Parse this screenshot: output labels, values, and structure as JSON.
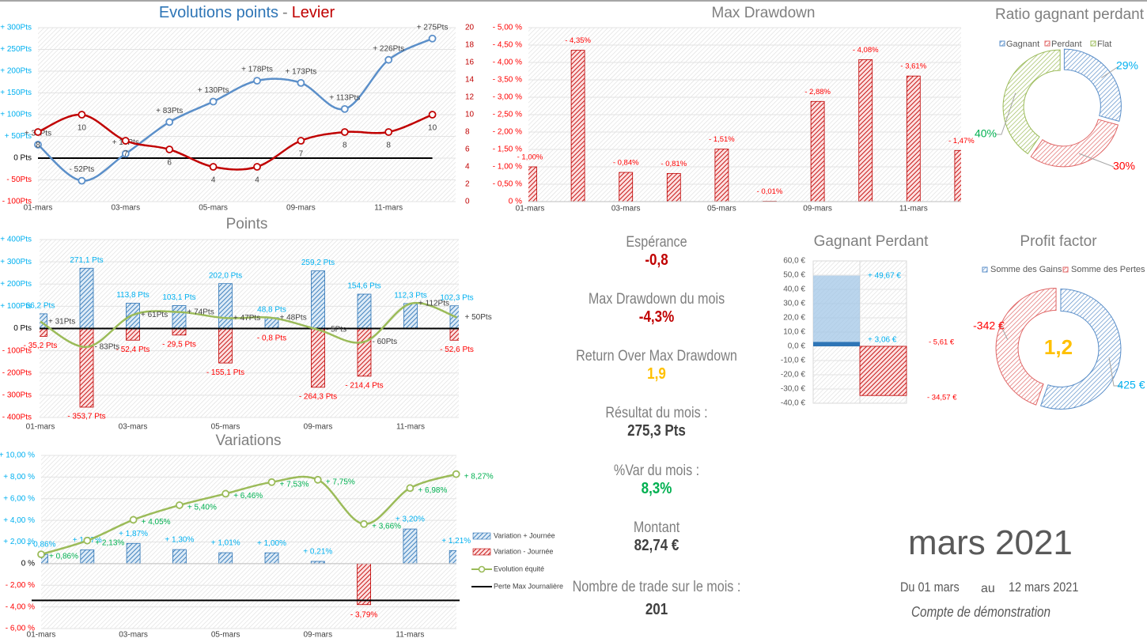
{
  "colors": {
    "blue_line": "#5b8fc9",
    "blue_bar": "#2e75b6",
    "red": "#c00000",
    "label_cyan": "#00b0f0",
    "label_red": "#ff0000",
    "label_green": "#00b050",
    "green_line": "#9bbb59",
    "gold": "#ffc000",
    "gray_text": "#7f7f7f"
  },
  "chart_data": [
    {
      "type": "line",
      "title": "Evolutions points",
      "title_separator": "-",
      "title_secondary": "Levier",
      "x_tick_labels": [
        "01-mars",
        "03-mars",
        "05-mars",
        "09-mars",
        "11-mars"
      ],
      "y_left_ticks": [
        "+ 300Pts",
        "+ 250Pts",
        "+ 200Pts",
        "+ 150Pts",
        "+ 100Pts",
        "+ 50Pts",
        "0 Pts",
        "- 50Pts",
        "- 100Pts"
      ],
      "y_right_ticks": [
        "20",
        "18",
        "16",
        "14",
        "12",
        "10",
        "8",
        "6",
        "4",
        "2",
        "0"
      ],
      "ylim_left": [
        -100,
        300
      ],
      "ylim_right": [
        0,
        20
      ],
      "grid": true,
      "series": [
        {
          "axis": "left",
          "color": "#5b8fc9",
          "values": [
            31,
            -52,
            10,
            83,
            130,
            178,
            173,
            113,
            226,
            275
          ],
          "labels": [
            "+ 31Pts",
            "- 52Pts",
            "+ 10Pts",
            "+ 83Pts",
            "+ 130Pts",
            "+ 178Pts",
            "+ 173Pts",
            "+ 113Pts",
            "+ 226Pts",
            "+ 275Pts"
          ]
        },
        {
          "axis": "right",
          "color": "#c00000",
          "values": [
            8,
            10,
            7,
            6,
            4,
            4,
            7,
            8,
            8,
            10
          ],
          "labels": [
            "8",
            "10",
            "7",
            "6",
            "4",
            "4",
            "7",
            "8",
            "8",
            "10"
          ]
        }
      ]
    },
    {
      "type": "bar",
      "title": "Points",
      "x_tick_labels": [
        "01-mars",
        "03-mars",
        "05-mars",
        "09-mars",
        "11-mars"
      ],
      "y_ticks": [
        "+ 400Pts",
        "+ 300Pts",
        "+ 200Pts",
        "+ 100Pts",
        "0 Pts",
        "- 100Pts",
        "- 200Pts",
        "- 300Pts",
        "- 400Pts"
      ],
      "ylim": [
        -400,
        400
      ],
      "grid": true,
      "series": [
        {
          "kind": "bar",
          "color": "#2e75b6",
          "values": [
            66.2,
            271.1,
            113.8,
            103.1,
            202.0,
            48.8,
            259.2,
            154.6,
            112.3,
            102.3
          ],
          "labels": [
            "66,2 Pts",
            "271,1 Pts",
            "113,8 Pts",
            "103,1 Pts",
            "202,0 Pts",
            "48,8 Pts",
            "259,2 Pts",
            "154,6 Pts",
            "112,3 Pts",
            "102,3 Pts"
          ]
        },
        {
          "kind": "bar",
          "color": "#c00000",
          "values": [
            -35.2,
            -353.7,
            -52.4,
            -29.5,
            -155.1,
            -0.8,
            -264.3,
            -214.4,
            null,
            -52.6
          ],
          "labels": [
            "- 35,2 Pts",
            "- 353,7 Pts",
            "- 52,4 Pts",
            "- 29,5 Pts",
            "- 155,1 Pts",
            "- 0,8 Pts",
            "- 264,3 Pts",
            "- 214,4 Pts",
            null,
            "- 52,6 Pts"
          ]
        },
        {
          "kind": "line",
          "color": "#9bbb59",
          "values": [
            31,
            -83,
            61,
            74,
            47,
            48,
            -5,
            -60,
            112,
            50
          ],
          "labels": [
            "+ 31Pts",
            "- 83Pts",
            "+ 61Pts",
            "+ 74Pts",
            "+ 47Pts",
            "+ 48Pts",
            "- 5Pts",
            "- 60Pts",
            "+ 112Pts",
            "+ 50Pts"
          ]
        }
      ]
    },
    {
      "type": "bar",
      "title": "Variations",
      "x_tick_labels": [
        "01-mars",
        "03-mars",
        "05-mars",
        "09-mars",
        "11-mars"
      ],
      "y_ticks": [
        "+ 10,00 %",
        "+ 8,00 %",
        "+ 6,00 %",
        "+ 4,00 %",
        "+ 2,00 %",
        "0 %",
        "- 2,00 %",
        "- 4,00 %",
        "- 6,00 %"
      ],
      "ylim": [
        -6,
        10
      ],
      "grid": true,
      "legend": "right",
      "series": [
        {
          "name": "Variation + Journée",
          "kind": "bar",
          "color": "#2e75b6",
          "values": [
            0.86,
            1.27,
            1.87,
            1.3,
            1.01,
            1.0,
            0.21,
            null,
            3.2,
            1.21
          ],
          "labels": [
            "+ 0,86%",
            "+ 1,27%",
            "+ 1,87%",
            "+ 1,30%",
            "+ 1,01%",
            "+ 1,00%",
            "+ 0,21%",
            null,
            "+ 3,20%",
            "+ 1,21%"
          ]
        },
        {
          "name": "Variation - Journée",
          "kind": "bar",
          "color": "#c00000",
          "values": [
            null,
            null,
            null,
            null,
            null,
            null,
            null,
            -3.79,
            null,
            null
          ],
          "labels": [
            null,
            null,
            null,
            null,
            null,
            null,
            null,
            "- 3,79%",
            null,
            null
          ]
        },
        {
          "name": "Evolution équité",
          "kind": "line",
          "color": "#9bbb59",
          "values": [
            0.86,
            2.13,
            4.05,
            5.4,
            6.46,
            7.53,
            7.75,
            3.66,
            6.98,
            8.27
          ],
          "labels": [
            "+ 0,86%",
            "+ 2,13%",
            "+ 4,05%",
            "+ 5,40%",
            "+ 6,46%",
            "+ 7,53%",
            "+ 7,75%",
            "+ 3,66%",
            "+ 6,98%",
            "+ 8,27%"
          ]
        },
        {
          "name": "Perte Max Journalière",
          "kind": "hline",
          "color": "#000000",
          "value": -3.4
        }
      ]
    },
    {
      "type": "bar",
      "title": "Max Drawdown",
      "x_tick_labels": [
        "01-mars",
        "03-mars",
        "05-mars",
        "09-mars",
        "11-mars"
      ],
      "y_ticks": [
        "- 5,00 %",
        "- 4,50 %",
        "- 4,00 %",
        "- 3,50 %",
        "- 3,00 %",
        "- 2,50 %",
        "- 2,00 %",
        "- 1,50 %",
        "- 1,00 %",
        "- 0,50 %",
        "0 %"
      ],
      "ylim": [
        0,
        -5
      ],
      "grid": true,
      "values": [
        -1.0,
        -4.35,
        -0.84,
        -0.81,
        -1.51,
        -0.01,
        -2.88,
        -4.08,
        -3.61,
        -1.47
      ],
      "labels": [
        "- 1,00%",
        "- 4,35%",
        "- 0,84%",
        "- 0,81%",
        "- 1,51%",
        "- 0,01%",
        "- 2,88%",
        "- 4,08%",
        "- 3,61%",
        "- 1,47%"
      ]
    },
    {
      "type": "bar",
      "title": "Gagnant Perdant",
      "y_ticks": [
        "60,0 €",
        "50,0 €",
        "40,0 €",
        "30,0 €",
        "20,0 €",
        "10,0 €",
        "0,0 €",
        "-10,0 €",
        "-20,0 €",
        "-30,0 €",
        "-40,0 €"
      ],
      "ylim": [
        -40,
        60
      ],
      "grid": true,
      "gagnant": {
        "values": [
          49.67,
          3.06
        ],
        "labels": [
          "+ 49,67 €",
          "+ 3,06 €"
        ]
      },
      "perdant": {
        "values": [
          -5.61,
          -34.57
        ],
        "labels": [
          "- 5,61 €",
          "- 34,57 €"
        ]
      }
    },
    {
      "type": "pie",
      "title": "Ratio gagnant perdant",
      "legend": "top",
      "slices": [
        {
          "name": "Gagnant",
          "value": 29,
          "label": "29%",
          "color": "#5b8fc9",
          "label_color": "#00b0f0"
        },
        {
          "name": "Perdant",
          "value": 30,
          "label": "30%",
          "color": "#e06666",
          "label_color": "#ff0000"
        },
        {
          "name": "Flat",
          "value": 40,
          "label": "40%",
          "color": "#9bbb59",
          "label_color": "#00b050"
        }
      ]
    },
    {
      "type": "pie",
      "title": "Profit factor",
      "legend": "top",
      "center_value": "1,2",
      "slices": [
        {
          "name": "Somme des Gains",
          "value": 425,
          "label": "425 €",
          "color": "#5b8fc9",
          "label_color": "#00b0f0"
        },
        {
          "name": "Somme des Pertes",
          "value": -342,
          "label": "-342 €",
          "color": "#e06666",
          "label_color": "#ff0000"
        }
      ]
    }
  ],
  "stats": [
    {
      "label": "Espérance",
      "value": "-0,8",
      "color": "#c00000"
    },
    {
      "label": "Max Drawdown du mois",
      "value": "-4,3%",
      "color": "#c00000"
    },
    {
      "label": "Return Over Max Drawdown",
      "value": "1,9",
      "color": "#ffc000"
    },
    {
      "label": "Résultat du mois :",
      "value": "275,3 Pts",
      "color": "#404040"
    },
    {
      "label": "%Var du mois :",
      "value": "8,3%",
      "color": "#00b050"
    },
    {
      "label": "Montant",
      "value": "82,74 €",
      "color": "#404040"
    },
    {
      "label": "Nombre de trade sur le mois :",
      "value": "201",
      "color": "#404040"
    }
  ],
  "period": {
    "month": "mars 2021",
    "from_label": "Du 01 mars",
    "to_word": "au",
    "to_label": "12 mars 2021",
    "account": "Compte de démonstration"
  }
}
